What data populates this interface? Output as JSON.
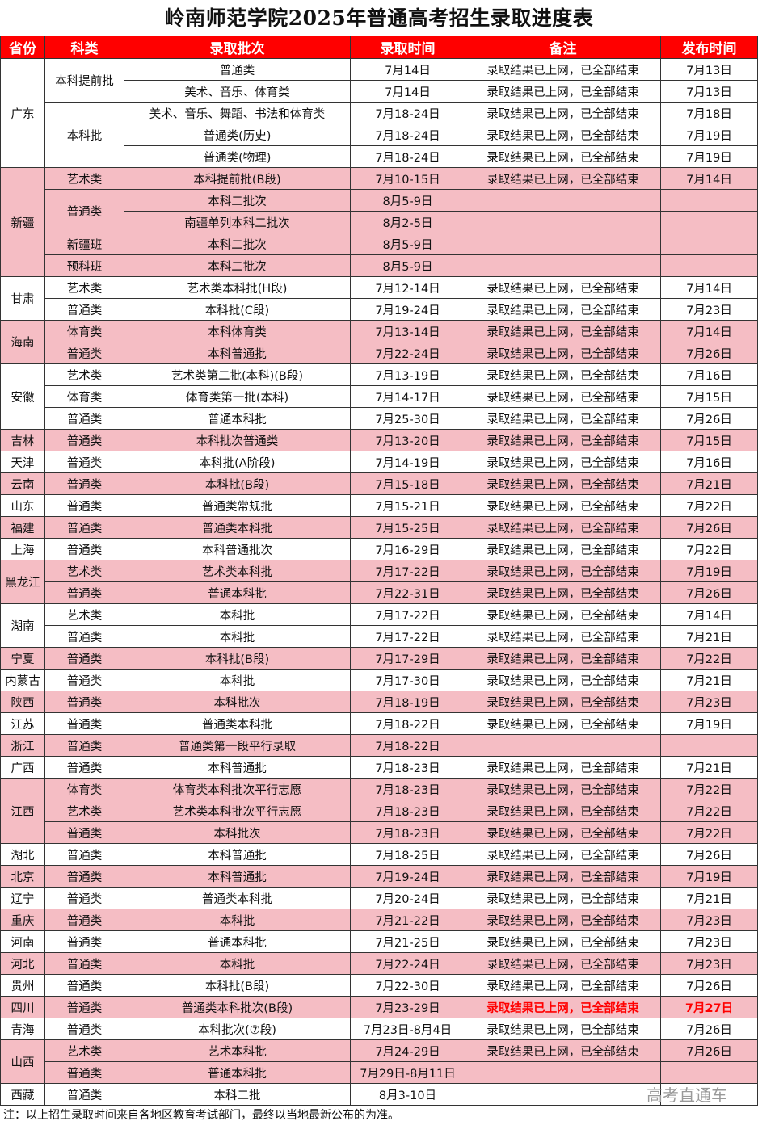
{
  "title": "岭南师范学院2025年普通高考招生录取进度表",
  "headers": [
    "省份",
    "科类",
    "录取批次",
    "录取时间",
    "备注",
    "发布时间"
  ],
  "colors": {
    "header_bg": "#ff0000",
    "highlight_bg": "#f5bdc4",
    "emphasis": "#ff0000"
  },
  "rows": [
    {
      "province": "广东",
      "category": "本科提前批",
      "batch": "普通类",
      "time": "7月14日",
      "note": "录取结果已上网，已全部结束",
      "publish": "7月13日",
      "highlight": false
    },
    {
      "province": "广东",
      "category": "本科提前批",
      "batch": "美术、音乐、体育类",
      "time": "7月14日",
      "note": "录取结果已上网，已全部结束",
      "publish": "7月13日",
      "highlight": false
    },
    {
      "province": "广东",
      "category": "本科批",
      "batch": "美术、音乐、舞蹈、书法和体育类",
      "time": "7月18-24日",
      "note": "录取结果已上网，已全部结束",
      "publish": "7月18日",
      "highlight": false
    },
    {
      "province": "广东",
      "category": "本科批",
      "batch": "普通类(历史)",
      "time": "7月18-24日",
      "note": "录取结果已上网，已全部结束",
      "publish": "7月19日",
      "highlight": false
    },
    {
      "province": "广东",
      "category": "本科批",
      "batch": "普通类(物理)",
      "time": "7月18-24日",
      "note": "录取结果已上网，已全部结束",
      "publish": "7月19日",
      "highlight": false
    },
    {
      "province": "新疆",
      "category": "艺术类",
      "batch": "本科提前批(B段)",
      "time": "7月10-15日",
      "note": "录取结果已上网，已全部结束",
      "publish": "7月14日",
      "highlight": true
    },
    {
      "province": "新疆",
      "category": "普通类",
      "batch": "本科二批次",
      "time": "8月5-9日",
      "note": "",
      "publish": "",
      "highlight": true
    },
    {
      "province": "新疆",
      "category": "普通类",
      "batch": "南疆单列本科二批次",
      "time": "8月2-5日",
      "note": "",
      "publish": "",
      "highlight": true
    },
    {
      "province": "新疆",
      "category": "新疆班",
      "batch": "本科二批次",
      "time": "8月5-9日",
      "note": "",
      "publish": "",
      "highlight": true
    },
    {
      "province": "新疆",
      "category": "预科班",
      "batch": "本科二批次",
      "time": "8月5-9日",
      "note": "",
      "publish": "",
      "highlight": true
    },
    {
      "province": "甘肃",
      "category": "艺术类",
      "batch": "艺术类本科批(H段)",
      "time": "7月12-14日",
      "note": "录取结果已上网，已全部结束",
      "publish": "7月14日",
      "highlight": false
    },
    {
      "province": "甘肃",
      "category": "普通类",
      "batch": "本科批(C段)",
      "time": "7月19-24日",
      "note": "录取结果已上网，已全部结束",
      "publish": "7月23日",
      "highlight": false
    },
    {
      "province": "海南",
      "category": "体育类",
      "batch": "本科体育类",
      "time": "7月13-14日",
      "note": "录取结果已上网，已全部结束",
      "publish": "7月14日",
      "highlight": true
    },
    {
      "province": "海南",
      "category": "普通类",
      "batch": "本科普通批",
      "time": "7月22-24日",
      "note": "录取结果已上网，已全部结束",
      "publish": "7月26日",
      "highlight": true
    },
    {
      "province": "安徽",
      "category": "艺术类",
      "batch": "艺术类第二批(本科)(B段)",
      "time": "7月13-19日",
      "note": "录取结果已上网，已全部结束",
      "publish": "7月16日",
      "highlight": false
    },
    {
      "province": "安徽",
      "category": "体育类",
      "batch": "体育类第一批(本科)",
      "time": "7月14-17日",
      "note": "录取结果已上网，已全部结束",
      "publish": "7月15日",
      "highlight": false
    },
    {
      "province": "安徽",
      "category": "普通类",
      "batch": "普通本科批",
      "time": "7月25-30日",
      "note": "录取结果已上网，已全部结束",
      "publish": "7月26日",
      "highlight": false
    },
    {
      "province": "吉林",
      "category": "普通类",
      "batch": "本科批次普通类",
      "time": "7月13-20日",
      "note": "录取结果已上网，已全部结束",
      "publish": "7月15日",
      "highlight": true
    },
    {
      "province": "天津",
      "category": "普通类",
      "batch": "本科批(A阶段)",
      "time": "7月14-19日",
      "note": "录取结果已上网，已全部结束",
      "publish": "7月16日",
      "highlight": false
    },
    {
      "province": "云南",
      "category": "普通类",
      "batch": "本科批(B段)",
      "time": "7月15-18日",
      "note": "录取结果已上网，已全部结束",
      "publish": "7月21日",
      "highlight": true
    },
    {
      "province": "山东",
      "category": "普通类",
      "batch": "普通类常规批",
      "time": "7月15-21日",
      "note": "录取结果已上网，已全部结束",
      "publish": "7月22日",
      "highlight": false
    },
    {
      "province": "福建",
      "category": "普通类",
      "batch": "普通类本科批",
      "time": "7月15-25日",
      "note": "录取结果已上网，已全部结束",
      "publish": "7月26日",
      "highlight": true
    },
    {
      "province": "上海",
      "category": "普通类",
      "batch": "本科普通批次",
      "time": "7月16-29日",
      "note": "录取结果已上网，已全部结束",
      "publish": "7月22日",
      "highlight": false
    },
    {
      "province": "黑龙江",
      "category": "艺术类",
      "batch": "艺术类本科批",
      "time": "7月17-22日",
      "note": "录取结果已上网，已全部结束",
      "publish": "7月19日",
      "highlight": true
    },
    {
      "province": "黑龙江",
      "category": "普通类",
      "batch": "普通本科批",
      "time": "7月22-31日",
      "note": "录取结果已上网，已全部结束",
      "publish": "7月26日",
      "highlight": true
    },
    {
      "province": "湖南",
      "category": "艺术类",
      "batch": "本科批",
      "time": "7月17-22日",
      "note": "录取结果已上网，已全部结束",
      "publish": "7月14日",
      "highlight": false
    },
    {
      "province": "湖南",
      "category": "普通类",
      "batch": "本科批",
      "time": "7月17-22日",
      "note": "录取结果已上网，已全部结束",
      "publish": "7月21日",
      "highlight": false
    },
    {
      "province": "宁夏",
      "category": "普通类",
      "batch": "本科批(B段)",
      "time": "7月17-29日",
      "note": "录取结果已上网，已全部结束",
      "publish": "7月22日",
      "highlight": true
    },
    {
      "province": "内蒙古",
      "category": "普通类",
      "batch": "本科批",
      "time": "7月17-30日",
      "note": "录取结果已上网，已全部结束",
      "publish": "7月21日",
      "highlight": false
    },
    {
      "province": "陕西",
      "category": "普通类",
      "batch": "本科批次",
      "time": "7月18-19日",
      "note": "录取结果已上网，已全部结束",
      "publish": "7月23日",
      "highlight": true
    },
    {
      "province": "江苏",
      "category": "普通类",
      "batch": "普通类本科批",
      "time": "7月18-22日",
      "note": "录取结果已上网，已全部结束",
      "publish": "7月19日",
      "highlight": false
    },
    {
      "province": "浙江",
      "category": "普通类",
      "batch": "普通类第一段平行录取",
      "time": "7月18-22日",
      "note": "",
      "publish": "",
      "highlight": true
    },
    {
      "province": "广西",
      "category": "普通类",
      "batch": "本科普通批",
      "time": "7月18-23日",
      "note": "录取结果已上网，已全部结束",
      "publish": "7月21日",
      "highlight": false
    },
    {
      "province": "江西",
      "category": "体育类",
      "batch": "体育类本科批次平行志愿",
      "time": "7月18-23日",
      "note": "录取结果已上网，已全部结束",
      "publish": "7月22日",
      "highlight": true
    },
    {
      "province": "江西",
      "category": "艺术类",
      "batch": "艺术类本科批次平行志愿",
      "time": "7月18-23日",
      "note": "录取结果已上网，已全部结束",
      "publish": "7月22日",
      "highlight": true
    },
    {
      "province": "江西",
      "category": "普通类",
      "batch": "本科批次",
      "time": "7月18-23日",
      "note": "录取结果已上网，已全部结束",
      "publish": "7月22日",
      "highlight": true
    },
    {
      "province": "湖北",
      "category": "普通类",
      "batch": "本科普通批",
      "time": "7月18-25日",
      "note": "录取结果已上网，已全部结束",
      "publish": "7月26日",
      "highlight": false
    },
    {
      "province": "北京",
      "category": "普通类",
      "batch": "本科普通批",
      "time": "7月19-24日",
      "note": "录取结果已上网，已全部结束",
      "publish": "7月19日",
      "highlight": true
    },
    {
      "province": "辽宁",
      "category": "普通类",
      "batch": "普通类本科批",
      "time": "7月20-24日",
      "note": "录取结果已上网，已全部结束",
      "publish": "7月21日",
      "highlight": false
    },
    {
      "province": "重庆",
      "category": "普通类",
      "batch": "本科批",
      "time": "7月21-22日",
      "note": "录取结果已上网，已全部结束",
      "publish": "7月23日",
      "highlight": true
    },
    {
      "province": "河南",
      "category": "普通类",
      "batch": "普通本科批",
      "time": "7月21-25日",
      "note": "录取结果已上网，已全部结束",
      "publish": "7月23日",
      "highlight": false
    },
    {
      "province": "河北",
      "category": "普通类",
      "batch": "本科批",
      "time": "7月22-24日",
      "note": "录取结果已上网，已全部结束",
      "publish": "7月23日",
      "highlight": true
    },
    {
      "province": "贵州",
      "category": "普通类",
      "batch": "本科批(B段)",
      "time": "7月22-30日",
      "note": "录取结果已上网，已全部结束",
      "publish": "7月26日",
      "highlight": false
    },
    {
      "province": "四川",
      "category": "普通类",
      "batch": "普通类本科批次(B段)",
      "time": "7月23-29日",
      "note": "录取结果已上网，已全部结束",
      "publish": "7月27日",
      "highlight": true,
      "emphasis": true
    },
    {
      "province": "青海",
      "category": "普通类",
      "batch": "本科批次(⑦段)",
      "time": "7月23日-8月4日",
      "note": "录取结果已上网，已全部结束",
      "publish": "7月26日",
      "highlight": false
    },
    {
      "province": "山西",
      "category": "艺术类",
      "batch": "艺术本科批",
      "time": "7月24-29日",
      "note": "录取结果已上网，已全部结束",
      "publish": "7月26日",
      "highlight": true
    },
    {
      "province": "山西",
      "category": "普通类",
      "batch": "普通本科批",
      "time": "7月29日-8月11日",
      "note": "",
      "publish": "",
      "highlight": true
    },
    {
      "province": "西藏",
      "category": "普通类",
      "batch": "本科二批",
      "time": "8月3-10日",
      "note": "",
      "publish": "",
      "highlight": false
    }
  ],
  "watermark": "高考直通车",
  "footnote": "注：以上招生录取时间来自各地区教育考试部门，最终以当地最新公布的为准。"
}
